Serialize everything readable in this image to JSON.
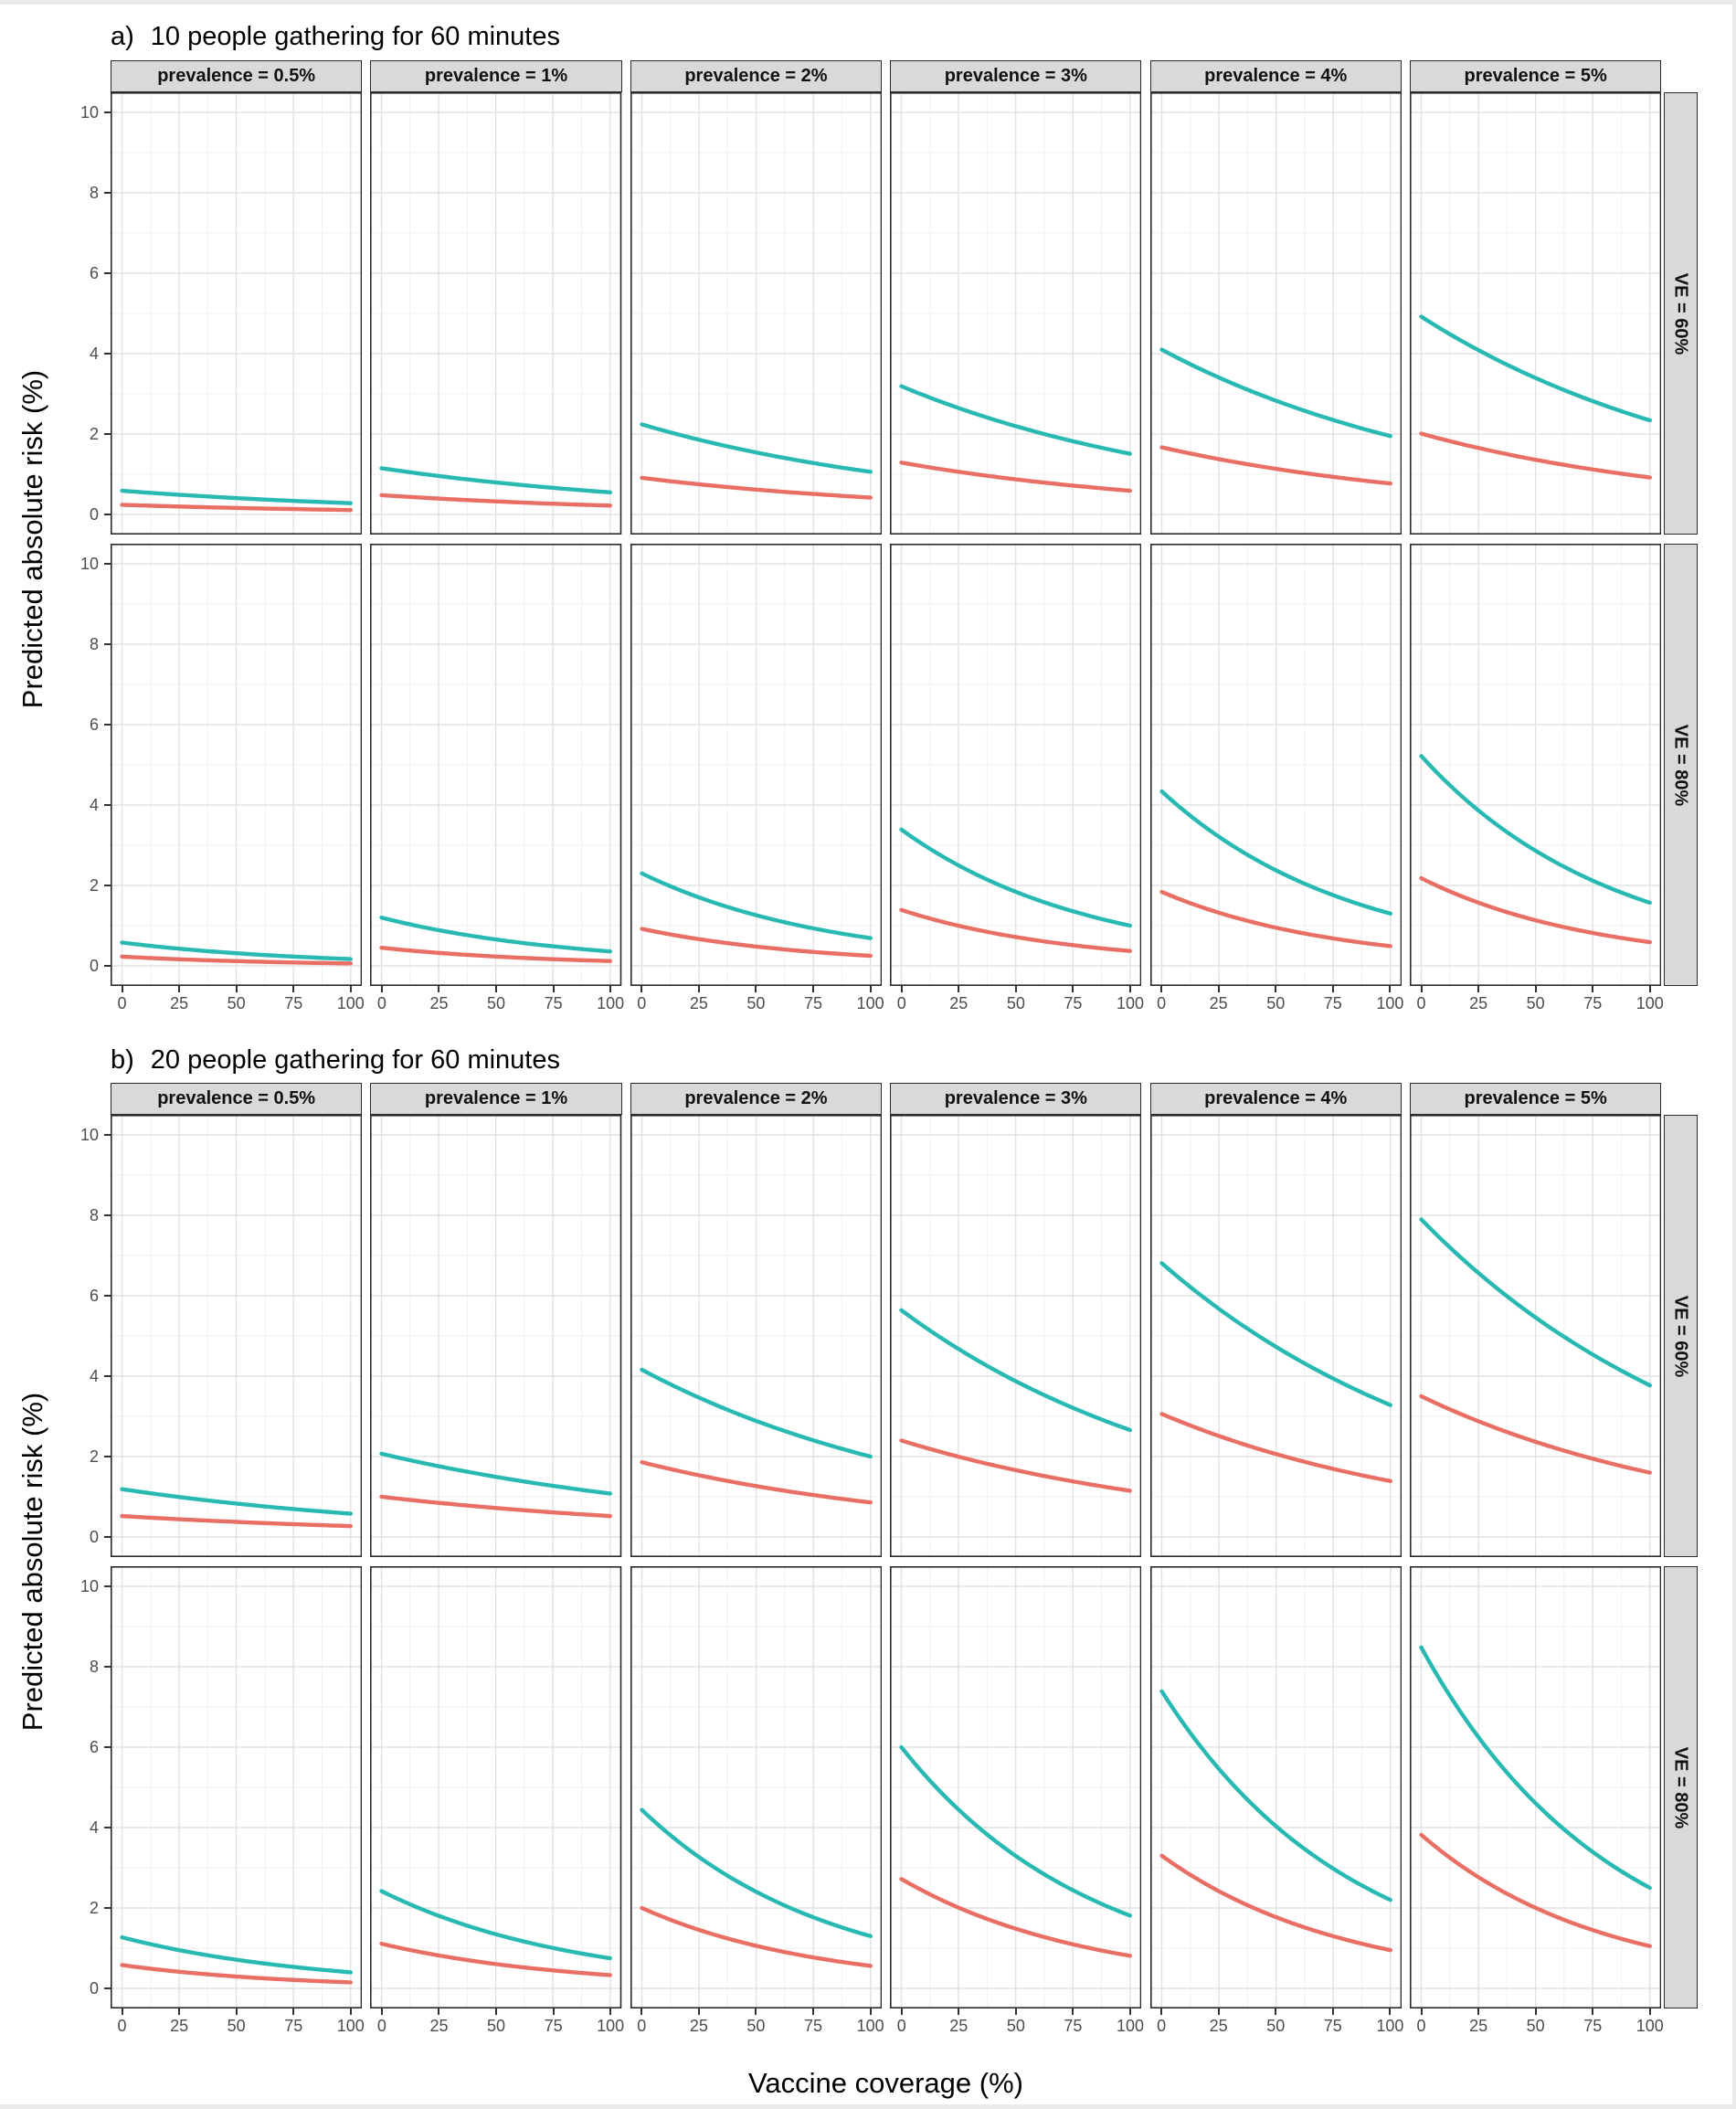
{
  "figure": {
    "x_axis_title": "Vaccine coverage (%)",
    "y_axis_title": "Predicted absolute risk (%)"
  },
  "colors": {
    "teal": "#28B9B2",
    "salmon": "#E96E64"
  },
  "chart_data": [
    {
      "type": "line",
      "panel_label": "a)",
      "title": "10 people gathering for 60 minutes",
      "xlabel": "Vaccine coverage (%)",
      "ylabel": "Predicted absolute risk (%)",
      "col_strips": [
        "prevalence = 0.5%",
        "prevalence = 1%",
        "prevalence = 2%",
        "prevalence = 3%",
        "prevalence = 4%",
        "prevalence = 5%"
      ],
      "row_strips": [
        "VE = 60%",
        "VE = 80%"
      ],
      "x": [
        0,
        25,
        50,
        75,
        100
      ],
      "x_ticks": [
        0,
        25,
        50,
        75,
        100
      ],
      "y_ticks": [
        0,
        2,
        4,
        6,
        8,
        10
      ],
      "xlim": [
        0,
        100
      ],
      "ylim": [
        0,
        10
      ],
      "grid": true,
      "legend": "none",
      "facets": [
        {
          "row": "VE = 60%",
          "col": "prevalence = 0.5%",
          "series": [
            {
              "color": "teal",
              "values": [
                0.59,
                0.49,
                0.407,
                0.338,
                0.28
              ]
            },
            {
              "color": "salmon",
              "values": [
                0.24,
                0.197,
                0.162,
                0.134,
                0.11
              ]
            }
          ]
        },
        {
          "row": "VE = 60%",
          "col": "prevalence = 1%",
          "series": [
            {
              "color": "teal",
              "values": [
                1.15,
                0.957,
                0.796,
                0.662,
                0.55
              ]
            },
            {
              "color": "salmon",
              "values": [
                0.48,
                0.395,
                0.325,
                0.267,
                0.22
              ]
            }
          ]
        },
        {
          "row": "VE = 60%",
          "col": "prevalence = 2%",
          "series": [
            {
              "color": "teal",
              "values": [
                2.24,
                1.858,
                1.542,
                1.279,
                1.06
              ]
            },
            {
              "color": "salmon",
              "values": [
                0.91,
                0.75,
                0.618,
                0.51,
                0.42
              ]
            }
          ]
        },
        {
          "row": "VE = 60%",
          "col": "prevalence = 3%",
          "series": [
            {
              "color": "teal",
              "values": [
                3.19,
                2.647,
                2.196,
                1.822,
                1.51
              ]
            },
            {
              "color": "salmon",
              "values": [
                1.29,
                1.061,
                0.873,
                0.718,
                0.59
              ]
            }
          ]
        },
        {
          "row": "VE = 60%",
          "col": "prevalence = 4%",
          "series": [
            {
              "color": "teal",
              "values": [
                4.1,
                3.405,
                2.828,
                2.349,
                1.95
              ]
            },
            {
              "color": "salmon",
              "values": [
                1.67,
                1.376,
                1.134,
                0.934,
                0.77
              ]
            }
          ]
        },
        {
          "row": "VE = 60%",
          "col": "prevalence = 5%",
          "series": [
            {
              "color": "teal",
              "values": [
                4.92,
                4.087,
                3.394,
                2.819,
                2.34
              ]
            },
            {
              "color": "salmon",
              "values": [
                2.01,
                1.654,
                1.36,
                1.119,
                0.92
              ]
            }
          ]
        },
        {
          "row": "VE = 80%",
          "col": "prevalence = 0.5%",
          "series": [
            {
              "color": "teal",
              "values": [
                0.58,
                0.427,
                0.314,
                0.231,
                0.17
              ]
            },
            {
              "color": "salmon",
              "values": [
                0.23,
                0.164,
                0.118,
                0.084,
                0.06
              ]
            }
          ]
        },
        {
          "row": "VE = 80%",
          "col": "prevalence = 1%",
          "series": [
            {
              "color": "teal",
              "values": [
                1.2,
                0.888,
                0.657,
                0.486,
                0.36
              ]
            },
            {
              "color": "salmon",
              "values": [
                0.45,
                0.323,
                0.232,
                0.167,
                0.12
              ]
            }
          ]
        },
        {
          "row": "VE = 80%",
          "col": "prevalence = 2%",
          "series": [
            {
              "color": "teal",
              "values": [
                2.3,
                1.702,
                1.26,
                0.932,
                0.69
              ]
            },
            {
              "color": "salmon",
              "values": [
                0.92,
                0.664,
                0.48,
                0.346,
                0.25
              ]
            }
          ]
        },
        {
          "row": "VE = 80%",
          "col": "prevalence = 3%",
          "series": [
            {
              "color": "teal",
              "values": [
                3.39,
                2.499,
                1.842,
                1.358,
                1.0
              ]
            },
            {
              "color": "salmon",
              "values": [
                1.39,
                0.998,
                0.717,
                0.515,
                0.37
              ]
            }
          ]
        },
        {
          "row": "VE = 80%",
          "col": "prevalence = 4%",
          "series": [
            {
              "color": "teal",
              "values": [
                4.34,
                3.211,
                2.375,
                1.757,
                1.3
              ]
            },
            {
              "color": "salmon",
              "values": [
                1.84,
                1.322,
                0.949,
                0.682,
                0.49
              ]
            }
          ]
        },
        {
          "row": "VE = 80%",
          "col": "prevalence = 5%",
          "series": [
            {
              "color": "teal",
              "values": [
                5.22,
                3.866,
                2.863,
                2.12,
                1.57
              ]
            },
            {
              "color": "salmon",
              "values": [
                2.18,
                1.572,
                1.134,
                0.818,
                0.59
              ]
            }
          ]
        }
      ]
    },
    {
      "type": "line",
      "panel_label": "b)",
      "title": "20 people gathering for 60 minutes",
      "xlabel": "Vaccine coverage (%)",
      "ylabel": "Predicted absolute risk (%)",
      "col_strips": [
        "prevalence = 0.5%",
        "prevalence = 1%",
        "prevalence = 2%",
        "prevalence = 3%",
        "prevalence = 4%",
        "prevalence = 5%"
      ],
      "row_strips": [
        "VE = 60%",
        "VE = 80%"
      ],
      "x": [
        0,
        25,
        50,
        75,
        100
      ],
      "x_ticks": [
        0,
        25,
        50,
        75,
        100
      ],
      "y_ticks": [
        0,
        2,
        4,
        6,
        8,
        10
      ],
      "xlim": [
        0,
        100
      ],
      "ylim": [
        0,
        10
      ],
      "grid": true,
      "legend": "none",
      "facets": [
        {
          "row": "VE = 60%",
          "col": "prevalence = 0.5%",
          "series": [
            {
              "color": "teal",
              "values": [
                1.19,
                0.994,
                0.831,
                0.694,
                0.58
              ]
            },
            {
              "color": "salmon",
              "values": [
                0.52,
                0.441,
                0.375,
                0.318,
                0.27
              ]
            }
          ]
        },
        {
          "row": "VE = 60%",
          "col": "prevalence = 1%",
          "series": [
            {
              "color": "teal",
              "values": [
                2.07,
                1.76,
                1.496,
                1.272,
                1.08
              ]
            },
            {
              "color": "salmon",
              "values": [
                1.0,
                0.849,
                0.721,
                0.612,
                0.52
              ]
            }
          ]
        },
        {
          "row": "VE = 60%",
          "col": "prevalence = 2%",
          "series": [
            {
              "color": "teal",
              "values": [
                4.16,
                3.465,
                2.886,
                2.404,
                2.0
              ]
            },
            {
              "color": "salmon",
              "values": [
                1.86,
                1.534,
                1.265,
                1.043,
                0.86
              ]
            }
          ]
        },
        {
          "row": "VE = 60%",
          "col": "prevalence = 3%",
          "series": [
            {
              "color": "teal",
              "values": [
                5.64,
                4.675,
                3.875,
                3.212,
                2.66
              ]
            },
            {
              "color": "salmon",
              "values": [
                2.4,
                1.997,
                1.662,
                1.383,
                1.15
              ]
            }
          ]
        },
        {
          "row": "VE = 60%",
          "col": "prevalence = 4%",
          "series": [
            {
              "color": "teal",
              "values": [
                6.81,
                5.674,
                4.728,
                3.939,
                3.28
              ]
            },
            {
              "color": "salmon",
              "values": [
                3.06,
                2.512,
                2.062,
                1.693,
                1.39
              ]
            }
          ]
        },
        {
          "row": "VE = 60%",
          "col": "prevalence = 5%",
          "series": [
            {
              "color": "teal",
              "values": [
                7.9,
                6.567,
                5.459,
                4.538,
                3.77
              ]
            },
            {
              "color": "salmon",
              "values": [
                3.5,
                2.878,
                2.367,
                1.946,
                1.6
              ]
            }
          ]
        },
        {
          "row": "VE = 80%",
          "col": "prevalence = 0.5%",
          "series": [
            {
              "color": "teal",
              "values": [
                1.27,
                0.951,
                0.713,
                0.534,
                0.4
              ]
            },
            {
              "color": "salmon",
              "values": [
                0.58,
                0.414,
                0.295,
                0.21,
                0.15
              ]
            }
          ]
        },
        {
          "row": "VE = 80%",
          "col": "prevalence = 1%",
          "series": [
            {
              "color": "teal",
              "values": [
                2.42,
                1.806,
                1.347,
                1.005,
                0.75
              ]
            },
            {
              "color": "salmon",
              "values": [
                1.11,
                0.82,
                0.605,
                0.447,
                0.33
              ]
            }
          ]
        },
        {
          "row": "VE = 80%",
          "col": "prevalence = 2%",
          "series": [
            {
              "color": "teal",
              "values": [
                4.44,
                3.266,
                2.403,
                1.767,
                1.3
              ]
            },
            {
              "color": "salmon",
              "values": [
                2.0,
                1.455,
                1.058,
                0.77,
                0.56
              ]
            }
          ]
        },
        {
          "row": "VE = 80%",
          "col": "prevalence = 3%",
          "series": [
            {
              "color": "teal",
              "values": [
                6.0,
                4.447,
                3.295,
                2.442,
                1.81
              ]
            },
            {
              "color": "salmon",
              "values": [
                2.72,
                2.009,
                1.484,
                1.096,
                0.81
              ]
            }
          ]
        },
        {
          "row": "VE = 80%",
          "col": "prevalence = 4%",
          "series": [
            {
              "color": "teal",
              "values": [
                7.39,
                5.459,
                4.032,
                2.978,
                2.2
              ]
            },
            {
              "color": "salmon",
              "values": [
                3.3,
                2.417,
                1.771,
                1.297,
                0.95
              ]
            }
          ]
        },
        {
          "row": "VE = 80%",
          "col": "prevalence = 5%",
          "series": [
            {
              "color": "teal",
              "values": [
                8.48,
                6.249,
                4.605,
                3.393,
                2.5
              ]
            },
            {
              "color": "salmon",
              "values": [
                3.82,
                2.766,
                2.003,
                1.45,
                1.05
              ]
            }
          ]
        }
      ]
    }
  ]
}
